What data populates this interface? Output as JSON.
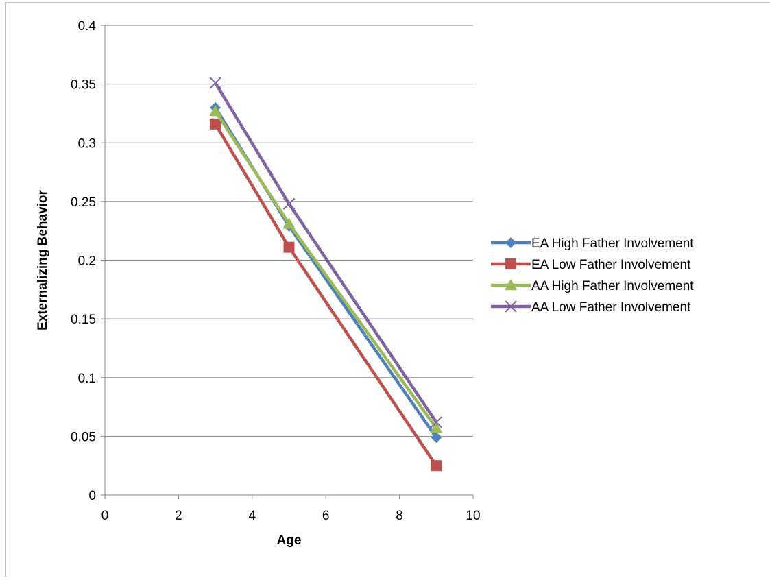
{
  "chart_data": {
    "type": "scatter",
    "title": "",
    "xlabel": "Age",
    "ylabel": "Externalizing Behavior",
    "xlim": [
      0,
      10
    ],
    "ylim": [
      0,
      0.4
    ],
    "xticks": [
      0,
      2,
      4,
      6,
      8,
      10
    ],
    "yticks": [
      0,
      0.05,
      0.1,
      0.15,
      0.2,
      0.25,
      0.3,
      0.35,
      0.4
    ],
    "xtick_labels": [
      "0",
      "2",
      "4",
      "6",
      "8",
      "10"
    ],
    "ytick_labels": [
      "0",
      "0.05",
      "0.1",
      "0.15",
      "0.2",
      "0.25",
      "0.3",
      "0.35",
      "0.4"
    ],
    "grid": "horizontal",
    "legend_position": "right",
    "series": [
      {
        "name": "EA High Father Involvement",
        "color": "#4f81bd",
        "marker": "diamond",
        "x": [
          3,
          5,
          9
        ],
        "y": [
          0.33,
          0.229,
          0.049
        ]
      },
      {
        "name": "EA Low Father Involvement",
        "color": "#c0504d",
        "marker": "square",
        "x": [
          3,
          5,
          9
        ],
        "y": [
          0.316,
          0.211,
          0.025
        ]
      },
      {
        "name": "AA High Father Involvement",
        "color": "#9bbb59",
        "marker": "triangle",
        "x": [
          3,
          5,
          9
        ],
        "y": [
          0.327,
          0.231,
          0.057
        ]
      },
      {
        "name": "AA Low Father Involvement",
        "color": "#8064a2",
        "marker": "x",
        "x": [
          3,
          5,
          9
        ],
        "y": [
          0.351,
          0.248,
          0.062
        ]
      }
    ]
  }
}
